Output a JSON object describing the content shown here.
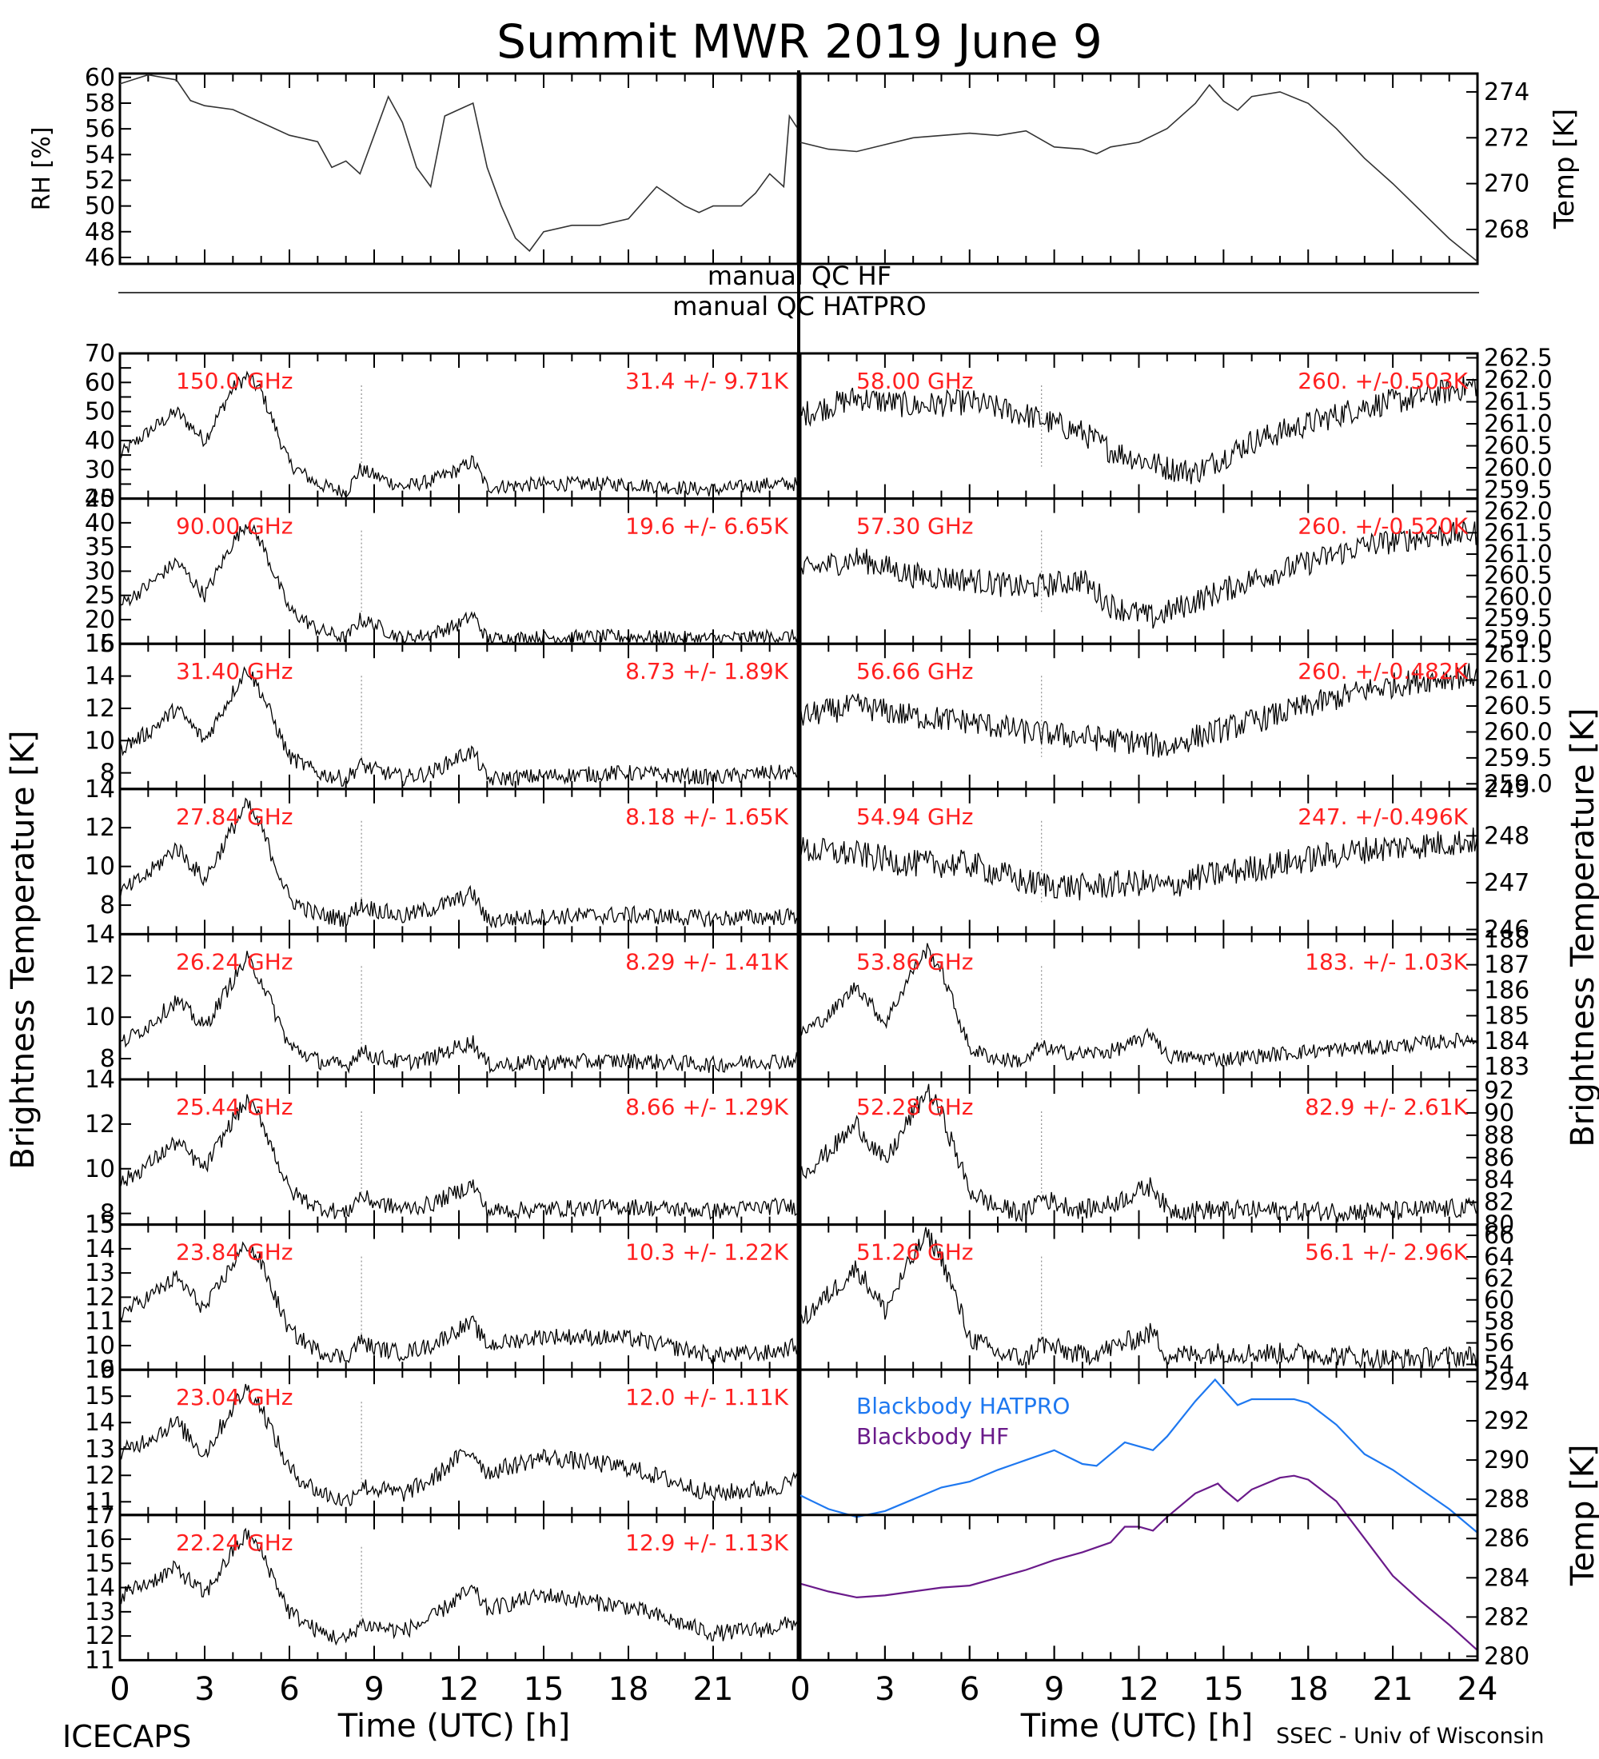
{
  "title": "Summit MWR 2019 June  9",
  "footer_left": "ICECAPS",
  "footer_right": "SSEC - Univ of Wisconsin",
  "xlabel": "Time (UTC) [h]",
  "ylabel_left": "Brightness Temperature [K]",
  "ylabel_right": "Brightness Temperature [K]",
  "qc": {
    "hf": "manual QC HF",
    "hatpro": "manual QC HATPRO"
  },
  "colors": {
    "trace": "#000000",
    "label": "#ff2020",
    "hatpro": "#1e78f0",
    "hf": "#6a1a8a"
  },
  "chart_data": [
    {
      "id": "rh",
      "type": "line",
      "ylabel": "RH [%]",
      "ylim": [
        45.5,
        60.3
      ],
      "yticks": [
        46,
        48,
        50,
        52,
        54,
        56,
        58,
        60
      ],
      "xlim": [
        0,
        24
      ],
      "x": [
        0,
        1,
        2,
        2.5,
        3,
        4,
        5,
        6,
        7,
        7.5,
        8,
        8.5,
        9,
        9.5,
        10,
        10.5,
        11,
        11.5,
        12,
        12.5,
        13,
        13.5,
        14,
        14.5,
        15,
        16,
        17,
        18,
        19,
        20,
        20.5,
        21,
        22,
        22.5,
        23,
        23.5,
        23.7,
        24
      ],
      "y": [
        59.5,
        60.2,
        59.8,
        58.2,
        57.8,
        57.5,
        56.5,
        55.5,
        55,
        53,
        53.5,
        52.5,
        55.5,
        58.5,
        56.5,
        53,
        51.5,
        57,
        57.5,
        58,
        53,
        50,
        47.5,
        46.5,
        48,
        48.5,
        48.5,
        49,
        51.5,
        50,
        49.5,
        50,
        50,
        51,
        52.5,
        51.5,
        57,
        56
      ]
    },
    {
      "id": "temp",
      "type": "line",
      "ylabel": "Temp [K]",
      "ylim": [
        266.5,
        274.8
      ],
      "yticks": [
        268,
        270,
        272,
        274
      ],
      "xlim": [
        0,
        24
      ],
      "x": [
        0,
        1,
        2,
        3,
        4,
        5,
        6,
        7,
        8,
        9,
        10,
        10.5,
        11,
        12,
        13,
        14,
        14.5,
        15,
        15.5,
        16,
        17,
        18,
        19,
        20,
        21,
        22,
        23,
        24
      ],
      "y": [
        271.8,
        271.5,
        271.4,
        271.7,
        272,
        272.1,
        272.2,
        272.1,
        272.3,
        271.6,
        271.5,
        271.3,
        271.6,
        271.8,
        272.4,
        273.5,
        274.3,
        273.6,
        273.2,
        273.8,
        274,
        273.5,
        272.4,
        271.1,
        270,
        268.8,
        267.6,
        266.6
      ]
    },
    {
      "label": "150.0 GHz",
      "stat": "31.4 +/-  9.71K",
      "ylim": [
        20,
        70
      ],
      "yticks": [
        20,
        25,
        30,
        35,
        40,
        45,
        50,
        55,
        60,
        65,
        70
      ],
      "ytick_labels": [
        "20",
        "",
        "30",
        "",
        "40",
        "",
        "50",
        "",
        "60",
        "",
        "70"
      ],
      "noise": 2.5,
      "x": [
        0,
        1,
        2,
        3,
        4,
        4.5,
        5,
        6,
        7,
        8,
        8.5,
        9,
        10,
        11,
        12,
        12.5,
        13,
        15,
        18,
        21,
        23,
        24
      ],
      "y": [
        35,
        43,
        50,
        40,
        58,
        62,
        57,
        32,
        25,
        22,
        30,
        28,
        24,
        26,
        30,
        33,
        24,
        25,
        25,
        23,
        25,
        25
      ]
    },
    {
      "label": "90.00 GHz",
      "stat": "19.6 +/-  6.65K",
      "ylim": [
        15,
        45
      ],
      "yticks": [
        15,
        20,
        25,
        30,
        35,
        40,
        45
      ],
      "noise": 1.5,
      "x": [
        0,
        1,
        2,
        3,
        4,
        4.5,
        5,
        6,
        7,
        8,
        8.5,
        9,
        10,
        11,
        12,
        12.5,
        13,
        15,
        18,
        21,
        23,
        24
      ],
      "y": [
        23,
        27,
        32,
        25,
        36,
        40,
        36,
        22,
        18,
        16,
        20,
        19,
        16,
        17,
        19,
        21,
        16,
        16.3,
        16.5,
        16,
        16.5,
        16.5
      ]
    },
    {
      "label": "31.40 GHz",
      "stat": "8.73 +/- 1.89K",
      "ylim": [
        7,
        16
      ],
      "yticks": [
        8,
        10,
        12,
        14,
        16
      ],
      "noise": 0.5,
      "x": [
        0,
        1,
        2,
        3,
        4,
        4.5,
        5,
        6,
        7,
        8,
        8.5,
        9,
        10,
        11,
        12,
        12.5,
        13,
        15,
        18,
        21,
        23,
        24
      ],
      "y": [
        9.5,
        10.5,
        12,
        10,
        13,
        14.5,
        13,
        9,
        8,
        7.6,
        8.5,
        8.2,
        7.7,
        8,
        9,
        9.3,
        7.6,
        7.8,
        8,
        7.7,
        8,
        8
      ]
    },
    {
      "label": "27.84 GHz",
      "stat": "8.18 +/- 1.65K",
      "ylim": [
        6.5,
        14
      ],
      "yticks": [
        8,
        10,
        12,
        14
      ],
      "noise": 0.45,
      "x": [
        0,
        1,
        2,
        3,
        4,
        4.5,
        5,
        6,
        7,
        8,
        8.5,
        9,
        10,
        11,
        12,
        12.5,
        13,
        15,
        18,
        21,
        23,
        24
      ],
      "y": [
        8.6,
        9.6,
        11,
        9.3,
        12,
        13.2,
        12,
        8.3,
        7.5,
        7.3,
        8,
        7.8,
        7.4,
        7.8,
        8.3,
        8.6,
        7.2,
        7.4,
        7.5,
        7.3,
        7.4,
        7.4
      ]
    },
    {
      "label": "26.24 GHz",
      "stat": "8.29 +/- 1.41K",
      "ylim": [
        7,
        14
      ],
      "yticks": [
        8,
        10,
        12,
        14
      ],
      "noise": 0.4,
      "x": [
        0,
        1,
        2,
        3,
        4,
        4.5,
        5,
        6,
        7,
        8,
        8.5,
        9,
        10,
        11,
        12,
        12.5,
        13,
        15,
        18,
        21,
        23,
        24
      ],
      "y": [
        8.7,
        9.6,
        10.8,
        9.5,
        11.8,
        12.8,
        11.8,
        8.6,
        7.9,
        7.6,
        8.4,
        8.1,
        7.8,
        8,
        8.6,
        8.8,
        7.7,
        7.8,
        7.9,
        7.7,
        7.9,
        7.9
      ]
    },
    {
      "label": "25.44 GHz",
      "stat": "8.66 +/- 1.29K",
      "ylim": [
        7.5,
        14
      ],
      "yticks": [
        8,
        10,
        12,
        14
      ],
      "noise": 0.38,
      "x": [
        0,
        1,
        2,
        3,
        4,
        4.5,
        5,
        6,
        7,
        8,
        8.5,
        9,
        10,
        11,
        12,
        12.5,
        13,
        15,
        18,
        21,
        23,
        24
      ],
      "y": [
        9.3,
        10.2,
        11.2,
        10,
        12.2,
        13,
        12.2,
        9,
        8.3,
        8,
        8.8,
        8.5,
        8.2,
        8.4,
        9,
        9.3,
        8.1,
        8.2,
        8.3,
        8.1,
        8.3,
        8.3
      ]
    },
    {
      "label": "23.84 GHz",
      "stat": "10.3 +/- 1.22K",
      "ylim": [
        9,
        15
      ],
      "yticks": [
        9,
        10,
        11,
        12,
        13,
        14,
        15
      ],
      "noise": 0.35,
      "x": [
        0,
        1,
        2,
        3,
        4,
        4.5,
        5,
        6,
        7,
        8,
        8.5,
        9,
        10,
        11,
        12,
        12.5,
        13,
        15,
        18,
        21,
        23,
        24
      ],
      "y": [
        11.3,
        12,
        12.8,
        11.5,
        13.4,
        14.2,
        13.4,
        10.6,
        9.8,
        9.5,
        10.2,
        9.9,
        9.7,
        10,
        10.7,
        10.9,
        10,
        10.4,
        10.3,
        9.6,
        9.7,
        10
      ]
    },
    {
      "label": "23.04 GHz",
      "stat": "12.0 +/- 1.11K",
      "ylim": [
        10.5,
        16
      ],
      "yticks": [
        11,
        12,
        13,
        14,
        15,
        16
      ],
      "noise": 0.35,
      "x": [
        0,
        1,
        2,
        3,
        4,
        4.5,
        5,
        6,
        7,
        8,
        8.5,
        9,
        10,
        11,
        12,
        12.5,
        13,
        15,
        18,
        21,
        23,
        24
      ],
      "y": [
        12.8,
        13.4,
        14,
        12.8,
        14.6,
        15.3,
        14.6,
        12.2,
        11.4,
        11,
        11.6,
        11.5,
        11.3,
        11.8,
        12.7,
        12.9,
        12.1,
        12.7,
        12.3,
        11.3,
        11.5,
        11.8
      ]
    },
    {
      "label": "22.24 GHz",
      "stat": "12.9 +/- 1.13K",
      "ylim": [
        11,
        17
      ],
      "yticks": [
        11,
        12,
        13,
        14,
        15,
        16,
        17
      ],
      "noise": 0.35,
      "x": [
        0,
        1,
        2,
        3,
        4,
        4.5,
        5,
        6,
        7,
        8,
        8.5,
        9,
        10,
        11,
        12,
        12.5,
        13,
        15,
        18,
        21,
        23,
        24
      ],
      "y": [
        13.7,
        14.2,
        14.8,
        13.7,
        15.5,
        16.2,
        15.5,
        13,
        12.2,
        11.8,
        12.5,
        12.4,
        12.2,
        12.7,
        13.6,
        13.9,
        13.1,
        13.7,
        13.2,
        12.1,
        12.3,
        12.6
      ]
    },
    {
      "label": "58.00 GHz",
      "stat": "260. +/-0.503K",
      "ylim": [
        259.3,
        262.6
      ],
      "yticks": [
        259.5,
        260,
        260.5,
        261,
        261.5,
        262,
        262.5
      ],
      "ytick_labels": [
        "259.5",
        "260.0",
        "260.5",
        "261.0",
        "261.5",
        "262.0",
        "262.5"
      ],
      "noise": 0.3,
      "x": [
        0,
        2,
        4,
        6,
        8,
        10,
        11,
        13,
        14,
        16,
        18,
        20,
        22,
        24
      ],
      "y": [
        261.2,
        261.6,
        261.4,
        261.5,
        261.2,
        260.8,
        260.4,
        260.0,
        259.9,
        260.6,
        261,
        261.4,
        261.6,
        261.9
      ]
    },
    {
      "label": "57.30 GHz",
      "stat": "260. +/-0.520K",
      "ylim": [
        258.9,
        262.3
      ],
      "yticks": [
        259,
        259.5,
        260,
        260.5,
        261,
        261.5,
        262
      ],
      "ytick_labels": [
        "259.0",
        "259.5",
        "260.0",
        "260.5",
        "261.0",
        "261.5",
        "262.0"
      ],
      "noise": 0.3,
      "x": [
        0,
        2,
        4,
        6,
        8,
        10,
        11,
        12.5,
        14,
        16,
        18,
        20,
        22,
        24
      ],
      "y": [
        260.6,
        260.9,
        260.5,
        260.4,
        260.2,
        260.4,
        259.8,
        259.5,
        259.9,
        260.4,
        260.8,
        261.2,
        261.4,
        261.5
      ]
    },
    {
      "label": "56.66 GHz",
      "stat": "260. +/-0.482K",
      "ylim": [
        258.9,
        261.7
      ],
      "yticks": [
        259,
        259.5,
        260,
        260.5,
        261,
        261.5
      ],
      "ytick_labels": [
        "259.0",
        "259.5",
        "260.0",
        "260.5",
        "261.0",
        "261.5"
      ],
      "noise": 0.25,
      "x": [
        0,
        2,
        4,
        6,
        8,
        10,
        12,
        13,
        14,
        16,
        18,
        20,
        22,
        24
      ],
      "y": [
        260.3,
        260.5,
        260.3,
        260.2,
        260.0,
        259.9,
        259.8,
        259.7,
        259.9,
        260.2,
        260.5,
        260.8,
        261.0,
        261.1
      ]
    },
    {
      "label": "54.94 GHz",
      "stat": "247. +/-0.496K",
      "ylim": [
        245.9,
        249
      ],
      "yticks": [
        246,
        247,
        248,
        249
      ],
      "noise": 0.3,
      "x": [
        0,
        2,
        4,
        6,
        8,
        10,
        12,
        13,
        14,
        16,
        18,
        20,
        22,
        24
      ],
      "y": [
        247.7,
        247.6,
        247.4,
        247.4,
        247.0,
        246.9,
        247.0,
        246.9,
        247.1,
        247.3,
        247.5,
        247.7,
        247.8,
        247.9
      ]
    },
    {
      "label": "53.86 GHz",
      "stat": "183. +/- 1.03K",
      "ylim": [
        182.5,
        188.2
      ],
      "yticks": [
        183,
        184,
        185,
        186,
        187,
        188
      ],
      "noise": 0.3,
      "x": [
        0,
        1,
        2,
        3,
        4,
        4.5,
        5,
        6,
        7,
        8,
        8.5,
        9,
        10,
        11,
        12,
        12.5,
        13,
        15,
        18,
        21,
        23,
        24
      ],
      "y": [
        184.3,
        185,
        186.2,
        184.7,
        186.8,
        187.6,
        186.8,
        183.7,
        183.3,
        183.2,
        183.8,
        183.6,
        183.5,
        183.6,
        184,
        184.3,
        183.4,
        183.3,
        183.6,
        183.8,
        184,
        184.1
      ]
    },
    {
      "label": "52.28 GHz",
      "stat": "82.9 +/- 2.61K",
      "ylim": [
        80,
        93
      ],
      "yticks": [
        80,
        82,
        84,
        86,
        88,
        90,
        92
      ],
      "noise": 0.9,
      "x": [
        0,
        1,
        2,
        3,
        4,
        4.5,
        5,
        6,
        7,
        8,
        8.5,
        9,
        10,
        11,
        12,
        12.5,
        13,
        15,
        18,
        21,
        23,
        24
      ],
      "y": [
        84.5,
        86.5,
        89,
        85.5,
        90,
        92,
        90,
        83,
        81.5,
        81,
        82.5,
        82,
        81.3,
        81.8,
        83,
        83.5,
        81.3,
        81.3,
        81.2,
        81.2,
        81.4,
        81.5
      ]
    },
    {
      "label": "51.26 GHz",
      "stat": "56.1 +/- 2.96K",
      "ylim": [
        53.5,
        67
      ],
      "yticks": [
        54,
        56,
        58,
        60,
        62,
        64,
        66
      ],
      "noise": 1,
      "x": [
        0,
        1,
        2,
        3,
        4,
        4.5,
        5,
        6,
        7,
        8,
        8.5,
        9,
        10,
        11,
        12,
        12.5,
        13,
        15,
        18,
        21,
        23,
        24
      ],
      "y": [
        58,
        60.5,
        63,
        59,
        64,
        66,
        64,
        56.5,
        55,
        54.5,
        56,
        55.5,
        54.8,
        55.5,
        56.5,
        57,
        54.8,
        55.1,
        55,
        54.5,
        54.7,
        54.8
      ]
    },
    {
      "id": "blackbody",
      "type": "line",
      "ylabel": "Temp [K]",
      "ylim": [
        279.8,
        294.6
      ],
      "yticks": [
        280,
        282,
        284,
        286,
        288,
        290,
        292,
        294
      ],
      "series": [
        {
          "name": "Blackbody HATPRO",
          "x": [
            0,
            1,
            2,
            3,
            4,
            5,
            6,
            7,
            8,
            9,
            10,
            10.5,
            11,
            11.5,
            12,
            12.5,
            13,
            14,
            14.7,
            15,
            15.5,
            16,
            17,
            17.5,
            18,
            19,
            20,
            21,
            22,
            23,
            24
          ],
          "y": [
            288.2,
            287.5,
            287.1,
            287.4,
            288.0,
            288.6,
            288.9,
            289.5,
            290.0,
            290.5,
            289.8,
            289.7,
            290.3,
            290.9,
            290.7,
            290.5,
            291.2,
            293.0,
            294.1,
            293.6,
            292.8,
            293.1,
            293.1,
            293.1,
            292.9,
            291.8,
            290.3,
            289.5,
            288.5,
            287.5,
            286.3
          ]
        },
        {
          "name": "Blackbody HF",
          "x": [
            0,
            1,
            2,
            3,
            4,
            5,
            6,
            7,
            8,
            9,
            10,
            11,
            11.5,
            12,
            12.5,
            13,
            14,
            14.8,
            15,
            15.5,
            16,
            17,
            17.5,
            18,
            19,
            20,
            21,
            22,
            23,
            24
          ],
          "y": [
            283.7,
            283.3,
            283.0,
            283.1,
            283.3,
            283.5,
            283.6,
            284.0,
            284.4,
            284.9,
            285.3,
            285.8,
            286.6,
            286.6,
            286.4,
            287.1,
            288.3,
            288.8,
            288.5,
            287.9,
            288.5,
            289.1,
            289.2,
            289.0,
            287.9,
            286.0,
            284.1,
            282.8,
            281.6,
            280.3
          ]
        }
      ]
    }
  ],
  "xaxis": {
    "ticks": [
      0,
      3,
      6,
      9,
      12,
      15,
      18,
      21
    ],
    "ticks_right": [
      0,
      3,
      6,
      9,
      12,
      15,
      18,
      21,
      24
    ]
  }
}
